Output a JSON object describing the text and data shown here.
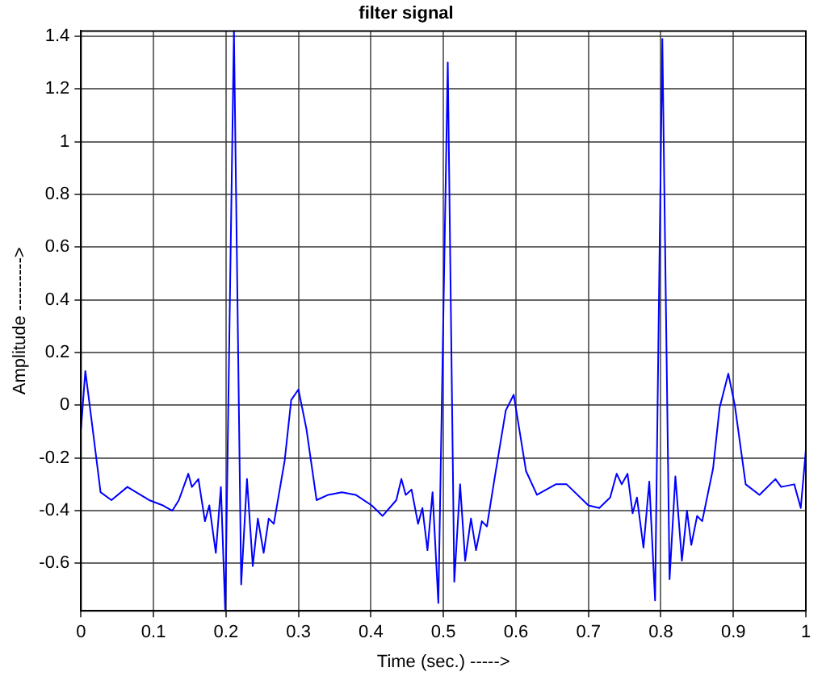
{
  "chart_data": {
    "type": "line",
    "title": "filter signal",
    "xlabel": "Time (sec.) ----->",
    "ylabel": "Amplitude --------->",
    "xlim": [
      0,
      1
    ],
    "xticks": [
      0,
      0.1,
      0.2,
      0.3,
      0.4,
      0.5,
      0.6,
      0.7,
      0.8,
      0.9,
      1
    ],
    "ylim": [
      -0.78,
      1.42
    ],
    "yticks": [
      -0.6,
      -0.4,
      -0.2,
      0,
      0.2,
      0.4,
      0.6,
      0.8,
      1,
      1.2,
      1.4
    ],
    "grid": true,
    "legend": false,
    "marker": "none",
    "line_style": "solid",
    "series": [
      {
        "color": "#0000ff",
        "x": [
          0,
          0.006,
          0.012,
          0.027,
          0.042,
          0.064,
          0.094,
          0.113,
          0.126,
          0.135,
          0.148,
          0.153,
          0.162,
          0.171,
          0.177,
          0.186,
          0.193,
          0.199,
          0.211,
          0.221,
          0.229,
          0.237,
          0.244,
          0.252,
          0.259,
          0.266,
          0.281,
          0.29,
          0.3,
          0.311,
          0.325,
          0.341,
          0.36,
          0.379,
          0.401,
          0.416,
          0.435,
          0.442,
          0.448,
          0.456,
          0.465,
          0.471,
          0.478,
          0.485,
          0.493,
          0.506,
          0.515,
          0.523,
          0.53,
          0.538,
          0.545,
          0.553,
          0.56,
          0.571,
          0.586,
          0.597,
          0.614,
          0.629,
          0.655,
          0.67,
          0.7,
          0.715,
          0.73,
          0.739,
          0.746,
          0.754,
          0.761,
          0.767,
          0.776,
          0.784,
          0.792,
          0.802,
          0.812,
          0.82,
          0.829,
          0.836,
          0.842,
          0.85,
          0.857,
          0.872,
          0.881,
          0.893,
          0.902,
          0.917,
          0.936,
          0.958,
          0.966,
          0.984,
          0.993,
          1
        ],
        "values": [
          -0.09,
          0.13,
          0,
          -0.33,
          -0.36,
          -0.31,
          -0.36,
          -0.38,
          -0.4,
          -0.36,
          -0.26,
          -0.31,
          -0.28,
          -0.44,
          -0.38,
          -0.56,
          -0.31,
          -0.78,
          1.42,
          -0.68,
          -0.28,
          -0.61,
          -0.43,
          -0.56,
          -0.43,
          -0.45,
          -0.21,
          0.02,
          0.06,
          -0.09,
          -0.36,
          -0.34,
          -0.33,
          -0.34,
          -0.38,
          -0.42,
          -0.36,
          -0.28,
          -0.34,
          -0.32,
          -0.45,
          -0.39,
          -0.55,
          -0.33,
          -0.75,
          1.3,
          -0.67,
          -0.3,
          -0.59,
          -0.43,
          -0.55,
          -0.44,
          -0.46,
          -0.27,
          -0.02,
          0.04,
          -0.25,
          -0.34,
          -0.3,
          -0.3,
          -0.38,
          -0.39,
          -0.35,
          -0.26,
          -0.3,
          -0.26,
          -0.41,
          -0.35,
          -0.54,
          -0.29,
          -0.74,
          1.39,
          -0.66,
          -0.27,
          -0.59,
          -0.4,
          -0.53,
          -0.42,
          -0.44,
          -0.24,
          -0.01,
          0.12,
          0,
          -0.3,
          -0.34,
          -0.28,
          -0.31,
          -0.3,
          -0.39,
          -0.17
        ]
      }
    ]
  }
}
